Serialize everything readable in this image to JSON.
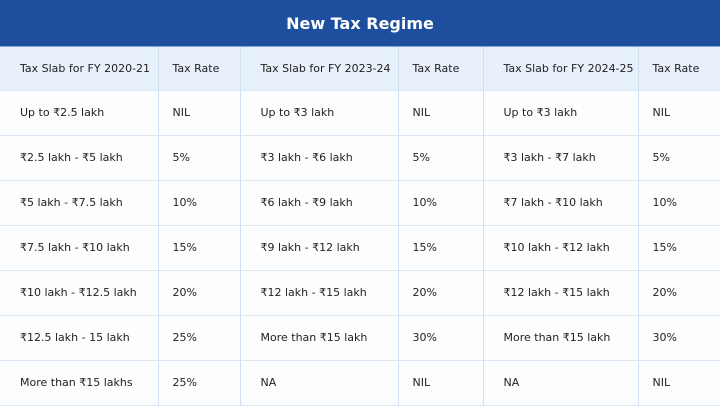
{
  "title": "New Tax Regime",
  "headers": [
    "Tax Slab for FY 2020-21",
    "Tax Rate",
    "Tax Slab for FY 2023-24",
    "Tax Rate",
    "Tax Slab for FY 2024-25",
    "Tax Rate"
  ],
  "rows": [
    [
      "Up to ₹2.5 lakh",
      "NIL",
      "Up to ₹3 lakh",
      "NIL",
      "Up to ₹3 lakh",
      "NIL"
    ],
    [
      "₹2.5 lakh - ₹5 lakh",
      "5%",
      "₹3 lakh - ₹6 lakh",
      "5%",
      "₹3 lakh - ₹7 lakh",
      "5%"
    ],
    [
      "₹5 lakh - ₹7.5 lakh",
      "10%",
      "₹6 lakh - ₹9 lakh",
      "10%",
      "₹7 lakh - ₹10 lakh",
      "10%"
    ],
    [
      "₹7.5 lakh - ₹10 lakh",
      "15%",
      "₹9 lakh - ₹12 lakh",
      "15%",
      "₹10 lakh - ₹12 lakh",
      "15%"
    ],
    [
      "₹10 lakh - ₹12.5 lakh",
      "20%",
      "₹12 lakh - ₹15 lakh",
      "20%",
      "₹12 lakh - ₹15 lakh",
      "20%"
    ],
    [
      "₹12.5 lakh - 15 lakh",
      "25%",
      "More than ₹15 lakh",
      "30%",
      "More than ₹15 lakh",
      "30%"
    ],
    [
      "More than ₹15 lakhs",
      "25%",
      "NA",
      "NIL",
      "NA",
      "NIL"
    ]
  ],
  "colors": {
    "title_bg": "#1d4f9e",
    "header_bg": "#e8f0fb"
  }
}
